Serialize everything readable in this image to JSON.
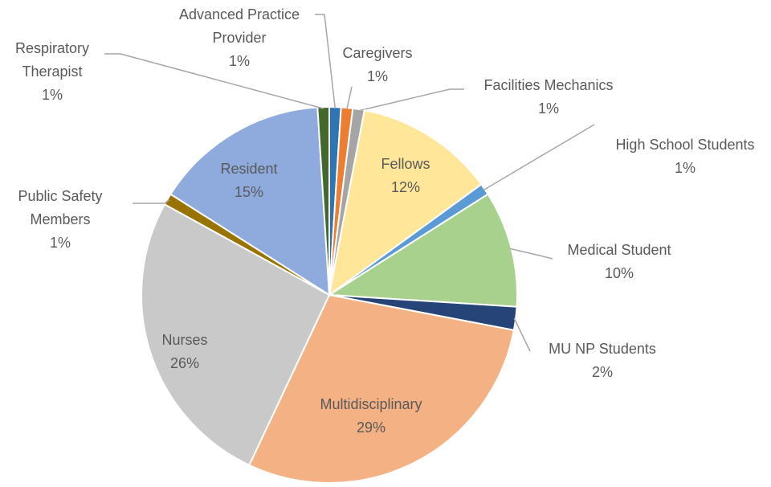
{
  "chart_data": {
    "type": "pie",
    "categories": [
      "Advanced Practice Provider",
      "Caregivers",
      "Facilities Mechanics",
      "Fellows",
      "High School Students",
      "Medical Student",
      "MU NP Students",
      "Multidisciplinary",
      "Nurses",
      "Public Safety Members",
      "Resident",
      "Respiratory Therapist"
    ],
    "values": [
      1,
      1,
      1,
      12,
      1,
      10,
      2,
      29,
      26,
      1,
      15,
      1
    ],
    "value_labels": [
      "1%",
      "1%",
      "1%",
      "12%",
      "1%",
      "10%",
      "2%",
      "29%",
      "26%",
      "1%",
      "15%",
      "1%"
    ],
    "colors": [
      "#2e75b6",
      "#ed7d31",
      "#a5a5a5",
      "#ffe699",
      "#5b9bd5",
      "#a9d18e",
      "#264478",
      "#f4b183",
      "#c9c9c9",
      "#997300",
      "#8faadc",
      "#43682b"
    ]
  }
}
